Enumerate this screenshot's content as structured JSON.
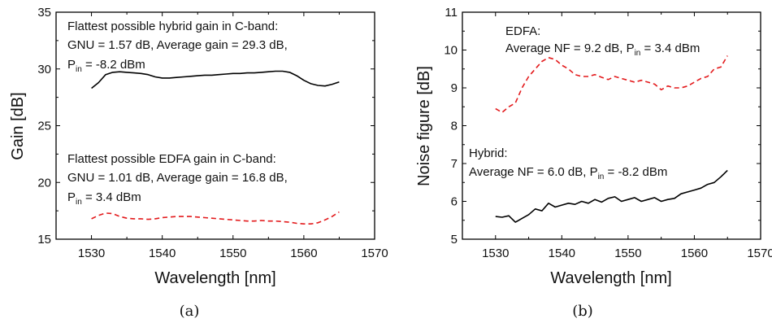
{
  "chart_data": [
    {
      "type": "line",
      "caption": "(a)",
      "xlabel": "Wavelength [nm]",
      "ylabel": "Gain [dB]",
      "xlim": [
        1525,
        1570
      ],
      "ylim": [
        15,
        35
      ],
      "xticks": [
        1530,
        1540,
        1550,
        1560,
        1570
      ],
      "yticks": [
        15,
        20,
        25,
        30,
        35
      ],
      "grid": false,
      "annotations": [
        {
          "lines": [
            "Flattest possible hybrid gain in C-band:",
            "GNU = 1.57 dB, Average gain = 29.3 dB,"
          ],
          "p_prefix": "P",
          "p_sub": "in",
          "p_value": " = -8.2 dBm"
        },
        {
          "lines": [
            "Flattest possible EDFA gain in C-band:",
            "GNU = 1.01 dB, Average gain = 16.8 dB,"
          ],
          "p_prefix": "P",
          "p_sub": "in",
          "p_value": " = 3.4 dBm"
        }
      ],
      "series": [
        {
          "color": "#000000",
          "dash": "solid",
          "x": [
            1530,
            1531,
            1532,
            1533,
            1534,
            1535,
            1536,
            1537,
            1538,
            1539,
            1540,
            1541,
            1542,
            1543,
            1544,
            1545,
            1546,
            1547,
            1548,
            1549,
            1550,
            1551,
            1552,
            1553,
            1554,
            1555,
            1556,
            1557,
            1558,
            1559,
            1560,
            1561,
            1562,
            1563,
            1564,
            1565
          ],
          "y": [
            28.3,
            28.8,
            29.5,
            29.7,
            29.75,
            29.7,
            29.65,
            29.6,
            29.5,
            29.3,
            29.2,
            29.2,
            29.25,
            29.3,
            29.35,
            29.4,
            29.45,
            29.45,
            29.5,
            29.55,
            29.6,
            29.6,
            29.65,
            29.65,
            29.7,
            29.75,
            29.8,
            29.8,
            29.7,
            29.4,
            29.0,
            28.7,
            28.55,
            28.5,
            28.65,
            28.85
          ]
        },
        {
          "color": "#e31a1c",
          "dash": "dashed",
          "x": [
            1530,
            1531,
            1532,
            1533,
            1534,
            1535,
            1536,
            1537,
            1538,
            1539,
            1540,
            1541,
            1542,
            1543,
            1544,
            1545,
            1546,
            1547,
            1548,
            1549,
            1550,
            1551,
            1552,
            1553,
            1554,
            1555,
            1556,
            1557,
            1558,
            1559,
            1560,
            1561,
            1562,
            1563,
            1564,
            1565
          ],
          "y": [
            16.8,
            17.1,
            17.3,
            17.25,
            17.0,
            16.85,
            16.8,
            16.8,
            16.75,
            16.8,
            16.9,
            16.95,
            17.0,
            17.0,
            17.0,
            16.95,
            16.9,
            16.85,
            16.8,
            16.75,
            16.7,
            16.65,
            16.6,
            16.6,
            16.65,
            16.6,
            16.6,
            16.55,
            16.5,
            16.4,
            16.35,
            16.35,
            16.45,
            16.7,
            17.0,
            17.4
          ]
        }
      ]
    },
    {
      "type": "line",
      "caption": "(b)",
      "xlabel": "Wavelength [nm]",
      "ylabel": "Noise figure [dB]",
      "xlim": [
        1525,
        1570
      ],
      "ylim": [
        5,
        11
      ],
      "xticks": [
        1530,
        1540,
        1550,
        1560,
        1570
      ],
      "yticks": [
        5,
        6,
        7,
        8,
        9,
        10,
        11
      ],
      "grid": false,
      "annotations": [
        {
          "lines": [
            "EDFA:"
          ],
          "p_line_prefix": "Average NF = 9.2 dB, ",
          "p_prefix": "P",
          "p_sub": "in",
          "p_value": " = 3.4 dBm"
        },
        {
          "lines": [
            "Hybrid:"
          ],
          "p_line_prefix": "Average NF = 6.0 dB, ",
          "p_prefix": "P",
          "p_sub": "in",
          "p_value": " = -8.2 dBm"
        }
      ],
      "series": [
        {
          "color": "#e31a1c",
          "dash": "dashed",
          "x": [
            1530,
            1531,
            1532,
            1533,
            1534,
            1535,
            1536,
            1537,
            1538,
            1539,
            1540,
            1541,
            1542,
            1543,
            1544,
            1545,
            1546,
            1547,
            1548,
            1549,
            1550,
            1551,
            1552,
            1553,
            1554,
            1555,
            1556,
            1557,
            1558,
            1559,
            1560,
            1561,
            1562,
            1563,
            1564,
            1565
          ],
          "y": [
            8.45,
            8.35,
            8.5,
            8.6,
            9.0,
            9.3,
            9.5,
            9.7,
            9.8,
            9.75,
            9.6,
            9.5,
            9.35,
            9.3,
            9.3,
            9.35,
            9.28,
            9.22,
            9.3,
            9.25,
            9.2,
            9.15,
            9.2,
            9.15,
            9.1,
            8.95,
            9.05,
            9.0,
            9.0,
            9.05,
            9.15,
            9.25,
            9.3,
            9.5,
            9.55,
            9.85
          ]
        },
        {
          "color": "#000000",
          "dash": "solid",
          "x": [
            1530,
            1531,
            1532,
            1533,
            1534,
            1535,
            1536,
            1537,
            1538,
            1539,
            1540,
            1541,
            1542,
            1543,
            1544,
            1545,
            1546,
            1547,
            1548,
            1549,
            1550,
            1551,
            1552,
            1553,
            1554,
            1555,
            1556,
            1557,
            1558,
            1559,
            1560,
            1561,
            1562,
            1563,
            1564,
            1565
          ],
          "y": [
            5.6,
            5.58,
            5.62,
            5.45,
            5.55,
            5.65,
            5.8,
            5.75,
            5.95,
            5.85,
            5.9,
            5.95,
            5.92,
            6.0,
            5.95,
            6.05,
            5.98,
            6.08,
            6.12,
            6.0,
            6.05,
            6.1,
            6.0,
            6.05,
            6.1,
            6.0,
            6.05,
            6.08,
            6.2,
            6.25,
            6.3,
            6.35,
            6.45,
            6.5,
            6.65,
            6.82
          ]
        }
      ]
    }
  ]
}
